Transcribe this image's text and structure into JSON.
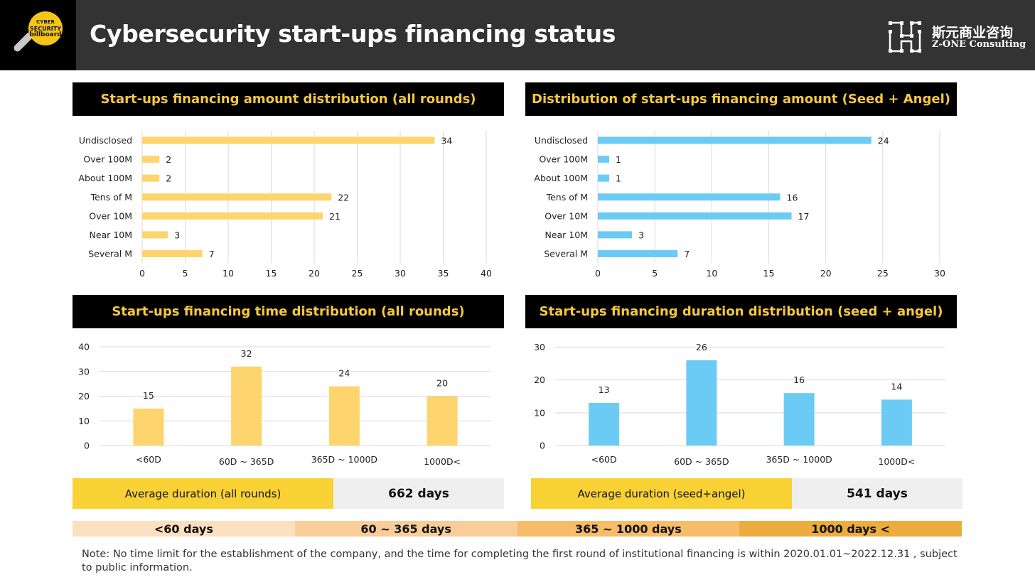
{
  "header": {
    "title": "Cybersecurity start-ups financing status",
    "logo_text": [
      "CYBER",
      "SECURITY",
      "billboard"
    ],
    "brand_cn": "斯元商业咨询",
    "brand_en": "Z-ONE Consulting"
  },
  "colors": {
    "yellow_bar": "#fdd46e",
    "blue_bar": "#6ccbf5",
    "title_yellow": "#f5c840",
    "avg_yellow": "#f8d235",
    "legend": [
      "#fbdfbf",
      "#f8cd9a",
      "#f7bc68",
      "#ecac3e"
    ]
  },
  "panels": [
    {
      "title": "Start-ups financing amount distribution (all rounds)"
    },
    {
      "title": "Distribution of start-ups financing amount (Seed + Angel)"
    },
    {
      "title": "Start-ups financing time distribution (all rounds)"
    },
    {
      "title": "Start-ups financing duration distribution (seed + angel)"
    }
  ],
  "chart_data": [
    {
      "type": "bar",
      "orientation": "horizontal",
      "title": "Start-ups financing amount distribution (all rounds)",
      "categories": [
        "Undisclosed",
        "Over 100M",
        "About 100M",
        "Tens of M",
        "Over 10M",
        "Near 10M",
        "Several M"
      ],
      "values": [
        34,
        2,
        2,
        22,
        21,
        3,
        7
      ],
      "xlim": [
        0,
        40
      ],
      "ticks": [
        0,
        5,
        10,
        15,
        20,
        25,
        30,
        35,
        40
      ],
      "color": "#fdd46e",
      "grid": true
    },
    {
      "type": "bar",
      "orientation": "horizontal",
      "title": "Distribution of start-ups financing amount (Seed + Angel)",
      "categories": [
        "Undisclosed",
        "Over 100M",
        "About 100M",
        "Tens of M",
        "Over 10M",
        "Near 10M",
        "Several M"
      ],
      "values": [
        24,
        1,
        1,
        16,
        17,
        3,
        7
      ],
      "xlim": [
        0,
        30
      ],
      "ticks": [
        0,
        5,
        10,
        15,
        20,
        25,
        30
      ],
      "color": "#6ccbf5",
      "grid": true
    },
    {
      "type": "bar",
      "orientation": "vertical",
      "title": "Start-ups financing time distribution (all rounds)",
      "categories": [
        "<60D",
        "60D ~ 365D",
        "365D ~ 1000D",
        "1000D<"
      ],
      "values": [
        15,
        32,
        24,
        20
      ],
      "ylim": [
        0,
        40
      ],
      "ticks": [
        0,
        10,
        20,
        30,
        40
      ],
      "color": "#fdd46e",
      "grid": true
    },
    {
      "type": "bar",
      "orientation": "vertical",
      "title": "Start-ups financing duration distribution (seed + angel)",
      "categories": [
        "<60D",
        "60D ~ 365D",
        "365D ~ 1000D",
        "1000D<"
      ],
      "values": [
        13,
        26,
        16,
        14
      ],
      "ylim": [
        0,
        30
      ],
      "ticks": [
        0,
        10,
        20,
        30
      ],
      "color": "#6ccbf5",
      "grid": true
    }
  ],
  "averages": [
    {
      "label": "Average duration (all rounds)",
      "value": "662 days"
    },
    {
      "label": "Average duration (seed+angel)",
      "value": "541 days"
    }
  ],
  "legend": [
    "<60 days",
    "60 ~ 365 days",
    "365 ~ 1000 days",
    "1000 days <"
  ],
  "note": "Note: No time limit for the establishment of the company, and the time for completing the first round of institutional financing is  within 2020.01.01~2022.12.31 , subject to public information."
}
